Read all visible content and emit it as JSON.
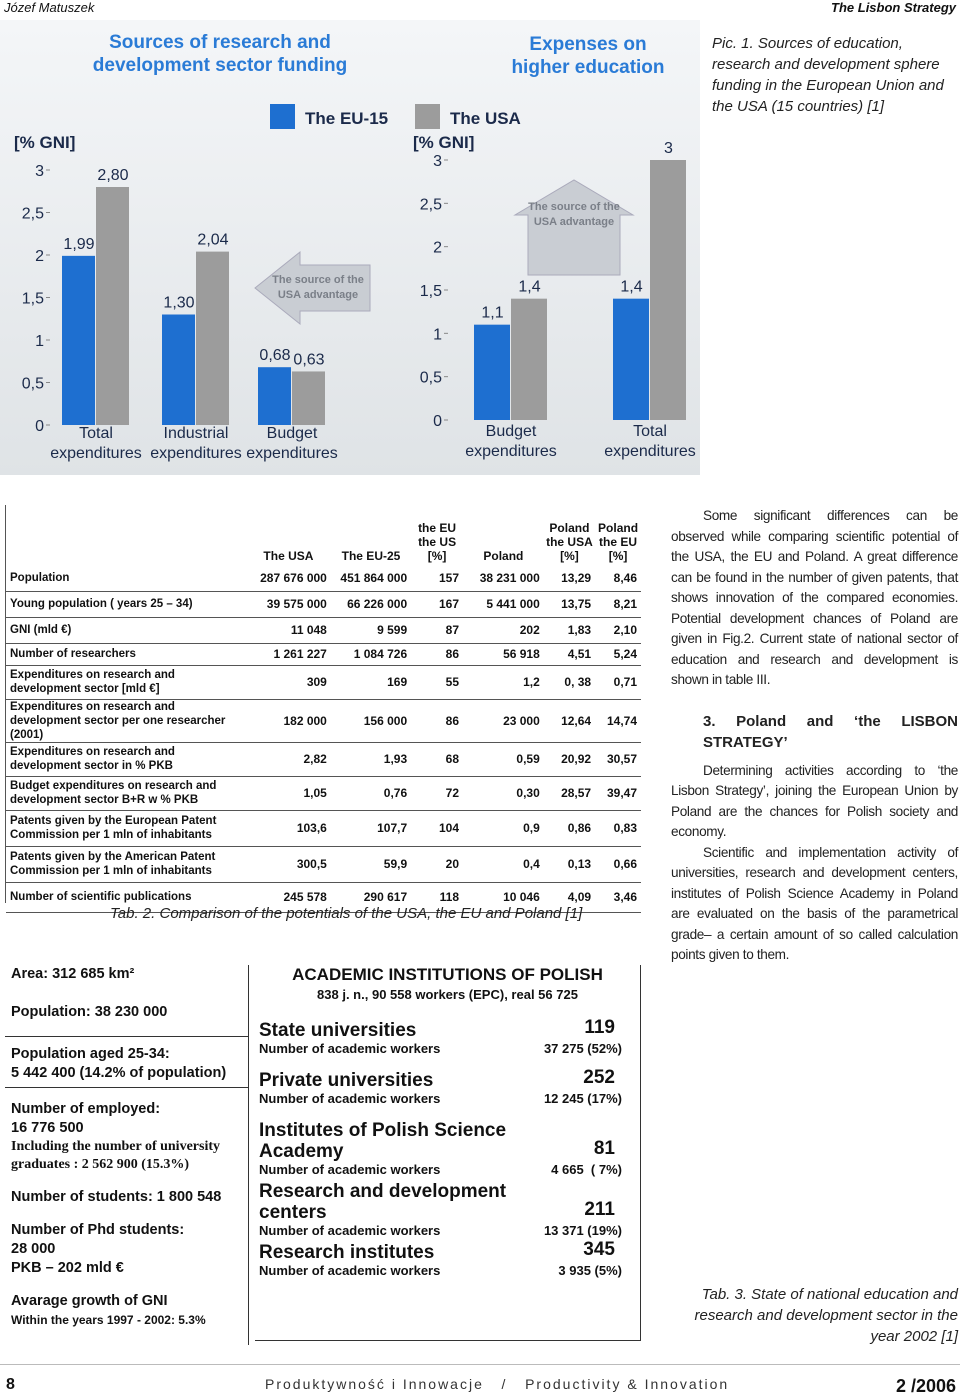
{
  "header": {
    "author": "Józef Matuszek",
    "running_title": "The Lisbon Strategy"
  },
  "figure": {
    "caption": "Pic. 1. Sources of education, research and development sphere funding in the European Union and the USA (15 countries) [1]",
    "legend": [
      {
        "name": "The EU-15",
        "color": "#1e6fd0"
      },
      {
        "name": "The USA",
        "color": "#9c9c9c"
      }
    ],
    "charts": [
      {
        "title": "Sources of research and\ndevelopment sector funding",
        "y_label": "[% GNI]",
        "ylim": [
          0,
          3
        ],
        "yticks": [
          0,
          {
            "value": 0.5,
            "label": "0,5"
          },
          1,
          {
            "value": 1.5,
            "label": "1,5"
          },
          2,
          {
            "value": 2.5,
            "label": "2,5"
          },
          3
        ],
        "categories": [
          "Total\nexpenditures",
          "Industrial\nexpenditures",
          "Budget\nexpenditures"
        ],
        "series": [
          {
            "color": "#1e6fd0",
            "values": [
              1.99,
              1.3,
              0.68
            ],
            "value_labels": [
              "1,99",
              "1,30",
              "0,68"
            ]
          },
          {
            "color": "#9c9c9c",
            "values": [
              2.8,
              2.04,
              0.63
            ],
            "value_labels": [
              "2,80",
              "2,04",
              "0,63"
            ]
          }
        ],
        "annotation": "The source of the\nUSA advantage"
      },
      {
        "title": "Expenses on\nhigher education",
        "y_label": "[% GNI]",
        "ylim": [
          0,
          3
        ],
        "yticks": [
          0,
          {
            "value": 0.5,
            "label": "0,5"
          },
          1,
          {
            "value": 1.5,
            "label": "1,5"
          },
          2,
          {
            "value": 2.5,
            "label": "2,5"
          },
          3
        ],
        "categories": [
          "Budget\nexpenditures",
          "Total\nexpenditures"
        ],
        "series": [
          {
            "color": "#1e6fd0",
            "values": [
              1.1,
              1.4
            ],
            "value_labels": [
              "1,1",
              "1,4"
            ]
          },
          {
            "color": "#9c9c9c",
            "values": [
              1.4,
              3
            ],
            "value_labels": [
              "1,4",
              "3"
            ]
          }
        ],
        "annotation": "The source of the\nUSA advantage"
      }
    ]
  },
  "table": {
    "caption": "Tab. 2. Comparison of the potentials of the USA, the EU and Poland [1]",
    "columns": [
      "The USA",
      "The EU-25",
      "the EU\nthe US\n[%]",
      "Poland",
      "Poland\nthe USA\n[%]",
      "Poland\nthe EU\n[%]"
    ],
    "rows": [
      [
        "Population",
        "287 676 000",
        "451 864 000",
        "157",
        "38 231 000",
        "13,29",
        "8,46"
      ],
      [
        "Young population ( years 25 – 34)",
        "39 575 000",
        "66 226 000",
        "167",
        "5 441 000",
        "13,75",
        "8,21"
      ],
      [
        "GNI (mld €)",
        "11 048",
        "9 599",
        "87",
        "202",
        "1,83",
        "2,10"
      ],
      [
        "Number of researchers",
        "1 261 227",
        "1 084 726",
        "86",
        "56 918",
        "4,51",
        "5,24"
      ],
      [
        "Expenditures on research and development sector [mld €]",
        "309",
        "169",
        "55",
        "1,2",
        "0, 38",
        "0,71"
      ],
      [
        "Expenditures on research and development sector per one researcher (2001)",
        "182 000",
        "156 000",
        "86",
        "23 000",
        "12,64",
        "14,74"
      ],
      [
        "Expenditures on research and development sector in % PKB",
        "2,82",
        "1,93",
        "68",
        "0,59",
        "20,92",
        "30,57"
      ],
      [
        "Budget expenditures on research and development sector B+R w % PKB",
        "1,05",
        "0,76",
        "72",
        "0,30",
        "28,57",
        "39,47"
      ],
      [
        "Patents given by the European Patent Commission per 1 mln of inhabitants",
        "103,6",
        "107,7",
        "104",
        "0,9",
        "0,86",
        "0,83"
      ],
      [
        "Patents given by the American Patent Commission per 1 mln of inhabitants",
        "300,5",
        "59,9",
        "20",
        "0,4",
        "0,13",
        "0,66"
      ],
      [
        "Number of scientific publications",
        "245 578",
        "290 617",
        "118",
        "10 046",
        "4,09",
        "3,46"
      ]
    ]
  },
  "text": {
    "paragraph_1": "Some significant differences can be observed while comparing scientific potential of the USA, the EU and Poland. A great difference can be found in the number of given patents, that shows innovation of the compared economies. Potential development chances of Poland are given in Fig.2. Current state of national sector of education and research and development is shown in table III.",
    "heading": "3. Poland and ‘the LISBON STRATEGY’",
    "paragraph_2": "Determining activities according to ‘the Lisbon Strategy’, joining the European Union by Poland are the chances for Polish society and economy.",
    "paragraph_3": "Scientific and implementation activity of universities, research and development centers, institutes of Polish Science Academy in Poland are evaluated on the basis of the parametrical grade– a certain amount of so called calculation points given to them."
  },
  "poland_facts": {
    "area": "Area: 312 685 km²",
    "population": "Population: 38 230 000",
    "aged_label": "Population aged 25-34:",
    "aged_value": "5 442 400 (14.2% of population)",
    "employed_label": "Number of employed:",
    "employed_value": "16 776 500",
    "graduates": "Including the number of university graduates :  2 562 900 (15.3%)",
    "students": "Number of students: 1 800 548",
    "phd_label": "Number of Phd students:",
    "phd_value": "28 000",
    "pkb": "PKB – 202 mld €",
    "growth_label": "Avarage growth of GNI",
    "growth_value": "Within the years 1997 - 2002:  5.3%"
  },
  "institutions": {
    "title": "ACADEMIC INSTITUTIONS OF POLISH",
    "subtitle": "838 j. n., 90 558 workers (EPC), real 56 725",
    "items": [
      {
        "name": "State universities",
        "count": "119",
        "label": "Number of academic workers",
        "workers": "37 275 (52%)"
      },
      {
        "name": "Private universities",
        "count": "252",
        "label": "Number of academic workers",
        "workers": "12 245 (17%)"
      },
      {
        "name": "Institutes of Polish Science\nAcademy",
        "count": "81",
        "label": "Number of academic workers",
        "workers": "4 665  ( 7%)"
      },
      {
        "name": "Research and development\ncenters",
        "count": "211",
        "label": "Number of academic workers",
        "workers": "13 371 (19%)"
      },
      {
        "name": "Research institutes",
        "count": "345",
        "label": "Number of academic workers",
        "workers": "3 935 (5%)"
      }
    ],
    "caption": "Tab. 3. State of national education and research and development sector in the year 2002 [1]"
  },
  "footer": {
    "page": "8",
    "journal": "Produktywność i Innowacje   /   Productivity & Innovation",
    "issue": "2 /2006"
  }
}
